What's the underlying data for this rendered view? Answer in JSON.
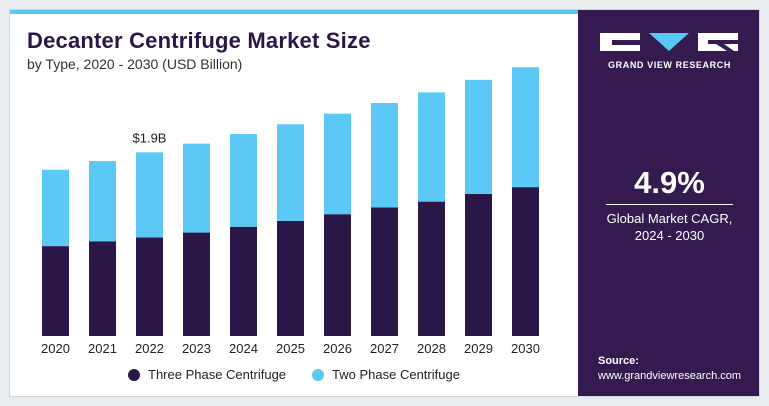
{
  "chart_data": {
    "type": "bar",
    "stacked": true,
    "title": "Decanter Centrifuge Market Size",
    "subtitle": "by Type, 2020 - 2030 (USD Billion)",
    "categories": [
      "2020",
      "2021",
      "2022",
      "2023",
      "2024",
      "2025",
      "2026",
      "2027",
      "2028",
      "2029",
      "2030"
    ],
    "series": [
      {
        "name": "Three Phase Centrifuge",
        "color": "#2b1747",
        "values": [
          0.93,
          0.98,
          1.02,
          1.07,
          1.13,
          1.19,
          1.26,
          1.33,
          1.39,
          1.47,
          1.54
        ]
      },
      {
        "name": "Two Phase Centrifuge",
        "color": "#5bc8f5",
        "values": [
          0.79,
          0.83,
          0.88,
          0.92,
          0.96,
          1.0,
          1.04,
          1.08,
          1.13,
          1.18,
          1.24
        ]
      }
    ],
    "annotations": [
      {
        "category": "2022",
        "text": "$1.9B"
      }
    ],
    "ylim": [
      0,
      3.0
    ],
    "grid": false,
    "legend_position": "bottom"
  },
  "panel": {
    "brand": "GRAND VIEW RESEARCH",
    "cagr_value": "4.9%",
    "cagr_label_line1": "Global Market CAGR,",
    "cagr_label_line2": "2024 - 2030",
    "source_label": "Source:",
    "source_url": "www.grandviewresearch.com"
  },
  "colors": {
    "panel_bg": "#341a4e",
    "accent": "#55c8f5"
  },
  "icons": {
    "logo": "gvr-logo-icon"
  }
}
